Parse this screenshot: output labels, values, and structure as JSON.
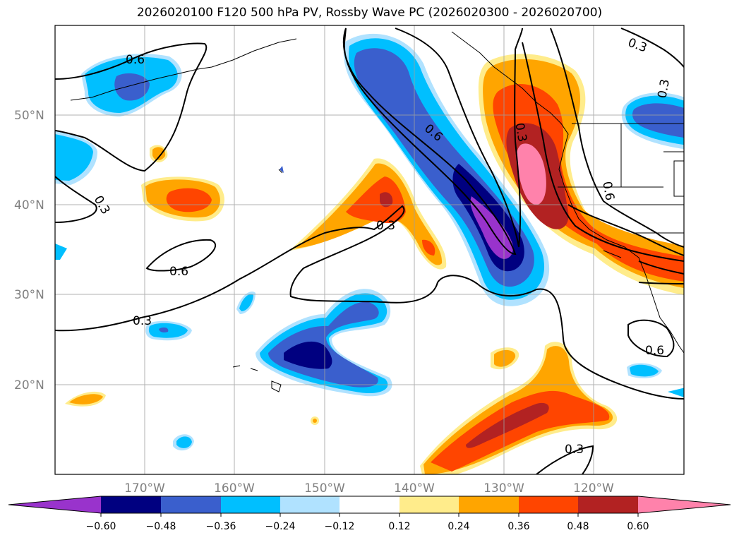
{
  "title": "2026020100 F120 500 hPa PV, Rossby Wave PC (2026020300 - 2026020700)",
  "map": {
    "lat_labels": [
      "50°N",
      "40°N",
      "30°N",
      "20°N"
    ],
    "lon_labels": [
      "170°W",
      "160°W",
      "150°W",
      "140°W",
      "130°W",
      "120°W"
    ],
    "contour_labels": [
      "0.6",
      "0.3",
      "0.6",
      "0.3",
      "0.6",
      "0.3",
      "0.3",
      "0.6",
      "0.3",
      "0.3",
      "0.3",
      "0.6"
    ]
  },
  "colors": {
    "neg_060_below": "#9933cc",
    "neg_048_060": "#000080",
    "neg_036_048": "#3a5fcd",
    "neg_024_036": "#00bfff",
    "neg_012_024": "#b0e2ff",
    "neutral": "#ffffff",
    "pos_012_024": "#ffec8b",
    "pos_024_036": "#ffa500",
    "pos_036_048": "#ff4500",
    "pos_048_060": "#b22222",
    "pos_060_above": "#ff82ab"
  },
  "colorbar": {
    "ticks": [
      "−0.60",
      "−0.48",
      "−0.36",
      "−0.24",
      "−0.12",
      "0.12",
      "0.24",
      "0.36",
      "0.48",
      "0.60"
    ]
  }
}
